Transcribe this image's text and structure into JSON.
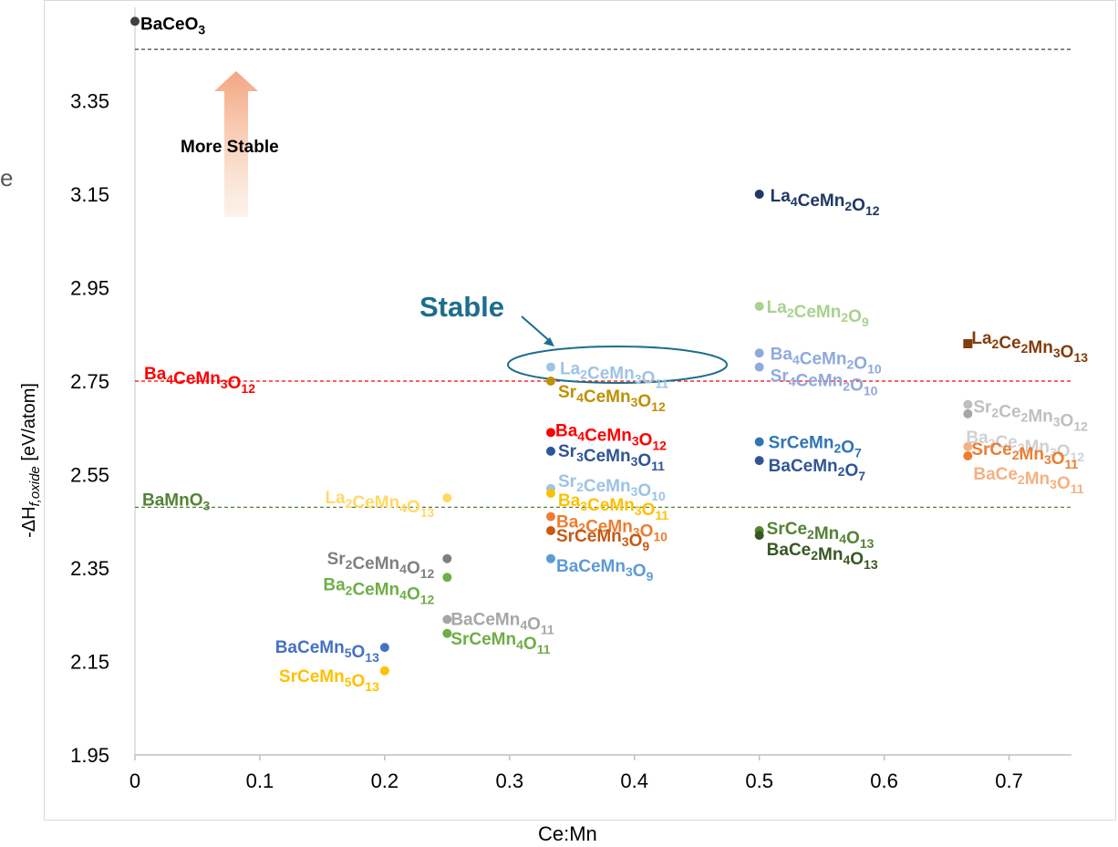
{
  "stray_text": "e",
  "annotation_more_stable": "More Stable",
  "annotation_stable": "Stable",
  "chart_data": {
    "type": "scatter",
    "xlabel": "Ce:Mn",
    "ylabel": "-ΔH_f,oxide [eV/atom]",
    "xlim": [
      0,
      0.75
    ],
    "ylim": [
      1.95,
      3.55
    ],
    "x_ticks": [
      "0",
      "0.1",
      "0.2",
      "0.3",
      "0.4",
      "0.5",
      "0.6",
      "0.7"
    ],
    "y_ticks": [
      "1.95",
      "2.15",
      "2.35",
      "2.55",
      "2.75",
      "2.95",
      "3.15",
      "3.35"
    ],
    "grid": false,
    "reference_lines": [
      {
        "y": 3.46,
        "color": "#404040",
        "label": "BaCeO3"
      },
      {
        "y": 2.75,
        "color": "#ff0000",
        "label": "Ba4CeMn3O12"
      },
      {
        "y": 2.48,
        "color": "#548235",
        "label": "BaMnO3"
      }
    ],
    "points": [
      {
        "x": 0.0,
        "y": 3.52,
        "label": "BaCeO3",
        "color": "#404040",
        "label_color": "#000000"
      },
      {
        "x": 0.2,
        "y": 2.18,
        "label": "BaCeMn5O13",
        "color": "#4472c4"
      },
      {
        "x": 0.2,
        "y": 2.13,
        "label": "SrCeMn5O13",
        "color": "#ffc000"
      },
      {
        "x": 0.25,
        "y": 2.5,
        "label": "La2CeMn4O13",
        "color": "#ffd966"
      },
      {
        "x": 0.25,
        "y": 2.37,
        "label": "Sr2CeMn4O12",
        "color": "#7f7f7f"
      },
      {
        "x": 0.25,
        "y": 2.33,
        "label": "Ba2CeMn4O12",
        "color": "#70ad47"
      },
      {
        "x": 0.25,
        "y": 2.24,
        "label": "BaCeMn4O11",
        "color": "#a6a6a6"
      },
      {
        "x": 0.25,
        "y": 2.21,
        "label": "SrCeMn4O11",
        "color": "#70ad47"
      },
      {
        "x": 0.333,
        "y": 2.78,
        "label": "La2CeMn3O11",
        "color": "#9dc3e6"
      },
      {
        "x": 0.333,
        "y": 2.75,
        "label": "Sr4CeMn3O12",
        "color": "#bf9000"
      },
      {
        "x": 0.333,
        "y": 2.64,
        "label": "Ba4CeMn3O12",
        "color": "#ff0000"
      },
      {
        "x": 0.333,
        "y": 2.6,
        "label": "Sr3CeMn3O11",
        "color": "#2f5597"
      },
      {
        "x": 0.333,
        "y": 2.52,
        "label": "Sr2CeMn3O10",
        "color": "#9dc3e6"
      },
      {
        "x": 0.333,
        "y": 2.51,
        "label": "Ba3CeMn3O11",
        "color": "#ffc000"
      },
      {
        "x": 0.333,
        "y": 2.46,
        "label": "Ba2CeMn3O10",
        "color": "#ed7d31"
      },
      {
        "x": 0.333,
        "y": 2.43,
        "label": "SrCeMn3O9",
        "color": "#c55a11"
      },
      {
        "x": 0.333,
        "y": 2.37,
        "label": "BaCeMn3O9",
        "color": "#5b9bd5"
      },
      {
        "x": 0.5,
        "y": 3.15,
        "label": "La4CeMn2O12",
        "color": "#1f3864"
      },
      {
        "x": 0.5,
        "y": 2.91,
        "label": "La2CeMn2O9",
        "color": "#a9d18e"
      },
      {
        "x": 0.5,
        "y": 2.81,
        "label": "Ba4CeMn2O10",
        "color": "#8faadc"
      },
      {
        "x": 0.5,
        "y": 2.78,
        "label": "Sr4CeMn2O10",
        "color": "#8faadc"
      },
      {
        "x": 0.5,
        "y": 2.62,
        "label": "SrCeMn2O7",
        "color": "#2e75b6"
      },
      {
        "x": 0.5,
        "y": 2.58,
        "label": "BaCeMn2O7",
        "color": "#2f5597"
      },
      {
        "x": 0.5,
        "y": 2.43,
        "label": "SrCe2Mn4O13",
        "color": "#548235"
      },
      {
        "x": 0.5,
        "y": 2.42,
        "label": "BaCe2Mn4O13",
        "color": "#385723"
      },
      {
        "x": 0.667,
        "y": 2.83,
        "label": "La2Ce2Mn3O13",
        "color": "#843c0c",
        "marker": "square"
      },
      {
        "x": 0.667,
        "y": 2.7,
        "label": "Sr2Ce2Mn3O12",
        "color": "#bfbfbf"
      },
      {
        "x": 0.667,
        "y": 2.68,
        "label": "Ba2Ce2Mn3O12",
        "color": "#a6a6a6",
        "label_color": "#d0d0d0"
      },
      {
        "x": 0.667,
        "y": 2.61,
        "label": "SrCe2Mn3O11",
        "color": "#f4b183",
        "label_color": "#ed7d31"
      },
      {
        "x": 0.667,
        "y": 2.59,
        "label": "BaCe2Mn3O11",
        "color": "#ed7d31",
        "label_color": "#f4b183"
      }
    ]
  }
}
